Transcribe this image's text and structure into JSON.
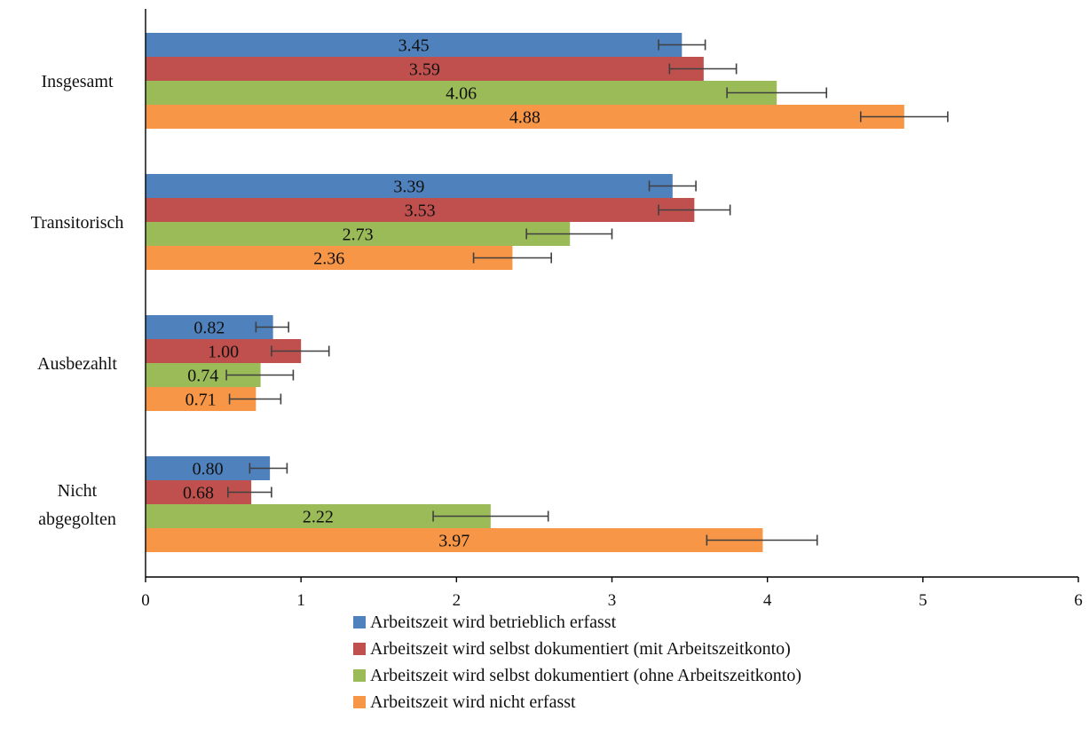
{
  "chart_data": {
    "type": "bar",
    "orientation": "horizontal",
    "categories": [
      "Insgesamt",
      "Transitorisch",
      "Ausbezahlt",
      "Nicht abgegolten"
    ],
    "series": [
      {
        "name": "Arbeitszeit wird betrieblich erfasst",
        "color": "#4f81bd",
        "values": [
          3.45,
          3.39,
          0.82,
          0.8
        ],
        "labels": [
          "3.45",
          "3.39",
          "0.82",
          "0.80"
        ],
        "error_low": [
          3.3,
          3.24,
          0.71,
          0.67
        ],
        "error_high": [
          3.6,
          3.54,
          0.92,
          0.91
        ]
      },
      {
        "name": "Arbeitszeit wird selbst dokumentiert (mit Arbeitszeitkonto)",
        "color": "#c0504d",
        "values": [
          3.59,
          3.53,
          1.0,
          0.68
        ],
        "labels": [
          "3.59",
          "3.53",
          "1.00",
          "0.68"
        ],
        "error_low": [
          3.37,
          3.3,
          0.81,
          0.53
        ],
        "error_high": [
          3.8,
          3.76,
          1.18,
          0.81
        ]
      },
      {
        "name": "Arbeitszeit wird selbst dokumentiert (ohne Arbeitszeitkonto)",
        "color": "#9bbb59",
        "values": [
          4.06,
          2.73,
          0.74,
          2.22
        ],
        "labels": [
          "4.06",
          "2.73",
          "0.74",
          "2.22"
        ],
        "error_low": [
          3.74,
          2.45,
          0.52,
          1.85
        ],
        "error_high": [
          4.38,
          3.0,
          0.95,
          2.59
        ]
      },
      {
        "name": "Arbeitszeit wird nicht erfasst",
        "color": "#f79646",
        "values": [
          4.88,
          2.36,
          0.71,
          3.97
        ],
        "labels": [
          "4.88",
          "2.36",
          "0.71",
          "3.97"
        ],
        "error_low": [
          4.6,
          2.11,
          0.54,
          3.61
        ],
        "error_high": [
          5.16,
          2.61,
          0.87,
          4.32
        ]
      }
    ],
    "xlim": [
      0,
      6
    ],
    "xticks": [
      "0",
      "1",
      "2",
      "3",
      "4",
      "5",
      "6"
    ],
    "grid": false,
    "legend_position": "bottom"
  }
}
